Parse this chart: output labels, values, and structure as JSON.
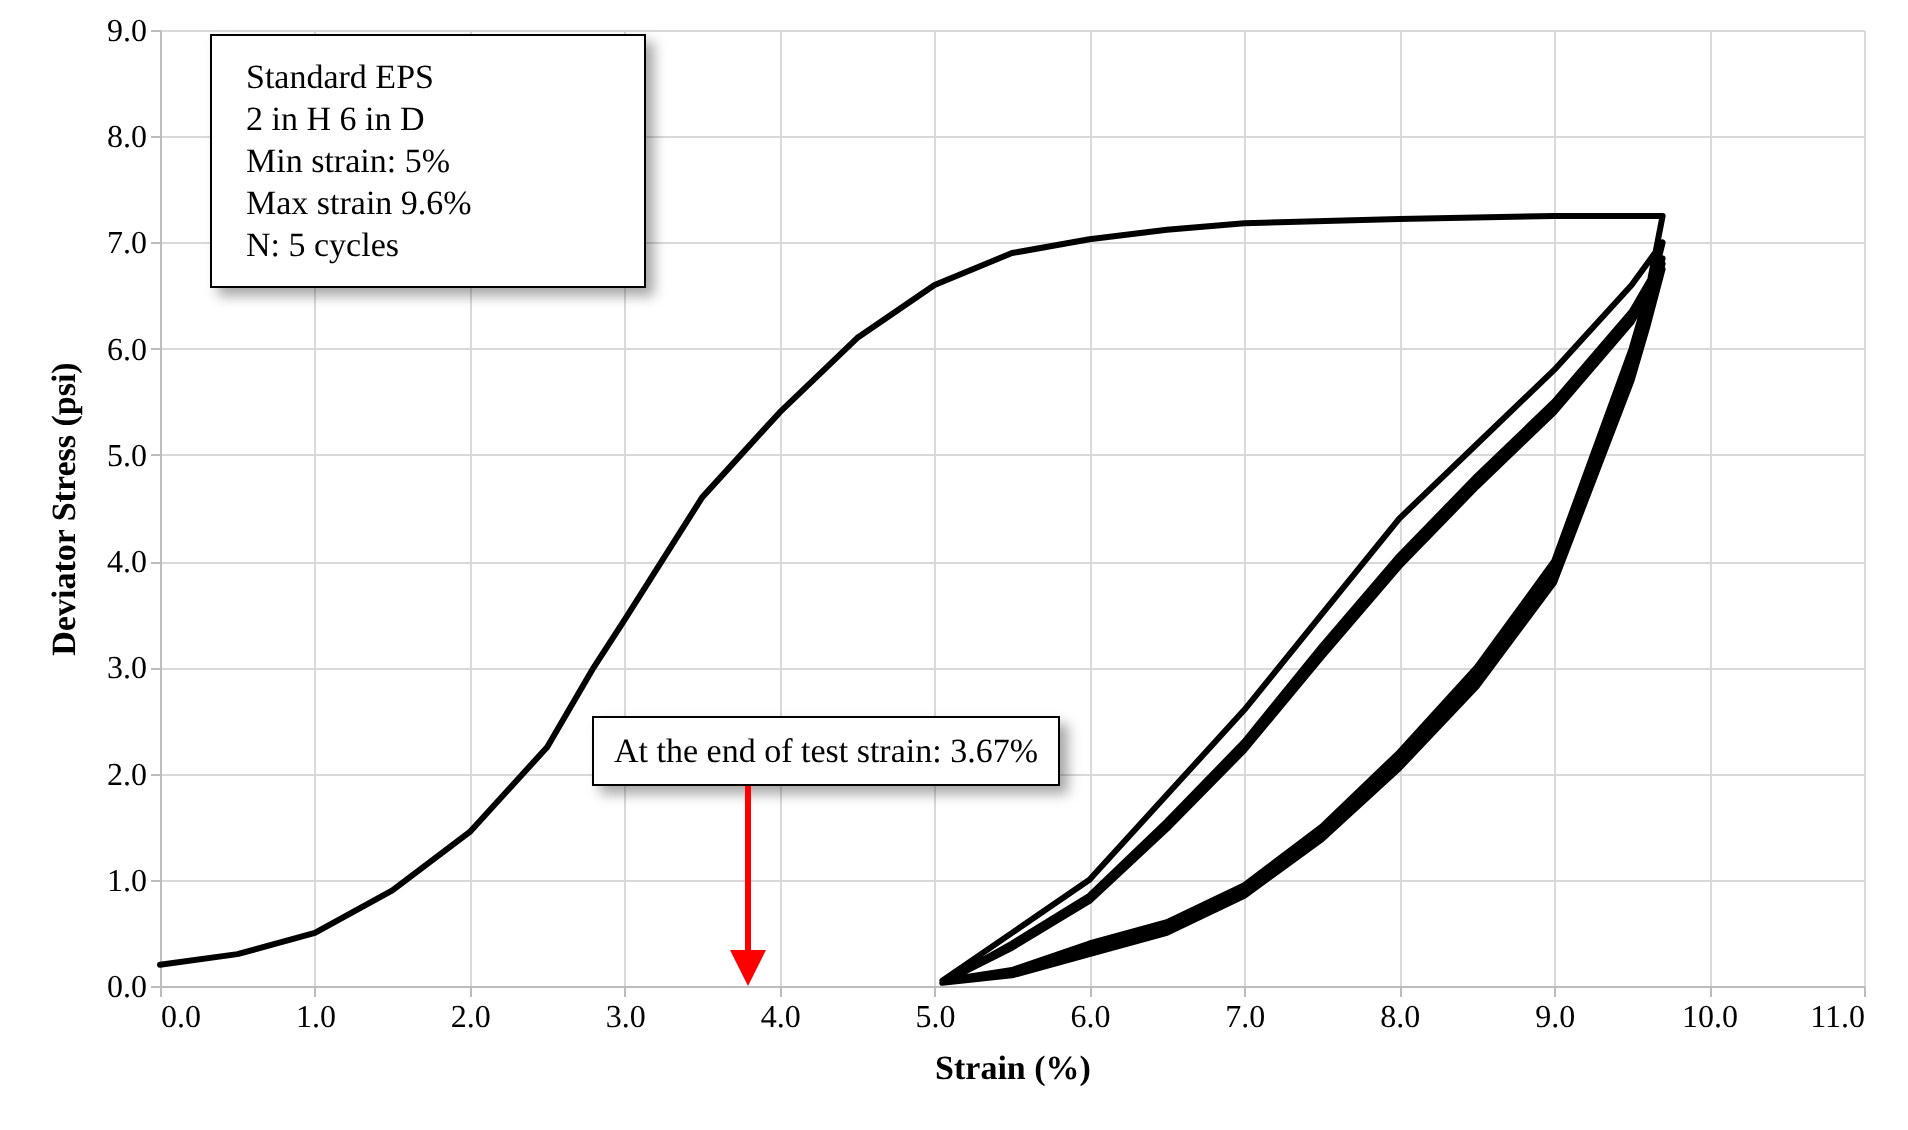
{
  "chart_data": {
    "type": "line",
    "xlabel": "Strain (%)",
    "ylabel": "Deviator Stress (psi)",
    "xlim": [
      0,
      11
    ],
    "xticks": [
      {
        "value": 0,
        "label": "0.0"
      },
      {
        "value": 1,
        "label": "1.0"
      },
      {
        "value": 2,
        "label": "2.0"
      },
      {
        "value": 3,
        "label": "3.0"
      },
      {
        "value": 4,
        "label": "4.0"
      },
      {
        "value": 5,
        "label": "5.0"
      },
      {
        "value": 6,
        "label": "6.0"
      },
      {
        "value": 7,
        "label": "7.0"
      },
      {
        "value": 8,
        "label": "8.0"
      },
      {
        "value": 9,
        "label": "9.0"
      },
      {
        "value": 10,
        "label": "10.0"
      },
      {
        "value": 11,
        "label": "11.0"
      }
    ],
    "ylim": [
      0,
      9
    ],
    "yticks": [
      {
        "value": 0,
        "label": "0.0"
      },
      {
        "value": 1,
        "label": "1.0"
      },
      {
        "value": 2,
        "label": "2.0"
      },
      {
        "value": 3,
        "label": "3.0"
      },
      {
        "value": 4,
        "label": "4.0"
      },
      {
        "value": 5,
        "label": "5.0"
      },
      {
        "value": 6,
        "label": "6.0"
      },
      {
        "value": 7,
        "label": "7.0"
      },
      {
        "value": 8,
        "label": "8.0"
      },
      {
        "value": 9,
        "label": "9.0"
      }
    ],
    "grid": true,
    "marker": "none",
    "line_style": "solid",
    "series": [
      {
        "color": "#000000",
        "x": [
          0,
          0.5,
          1,
          1.5,
          2,
          2.5,
          2.8,
          3,
          3.5,
          4,
          4.5,
          5,
          5.5,
          6,
          6.5,
          7,
          8,
          9,
          9.7,
          9.6,
          9.5,
          9,
          8.5,
          8,
          7.5,
          7,
          6.5,
          6,
          5.5,
          5.05,
          5.5,
          6,
          6.5,
          7,
          7.5,
          8,
          8.5,
          9,
          9.5,
          9.7,
          9.6,
          9.5,
          9,
          8.5,
          8,
          7.5,
          7,
          6.5,
          6,
          5.5,
          5.05,
          5.5,
          6,
          6.5,
          7,
          7.5,
          8,
          8.5,
          9,
          9.5,
          9.7,
          9.6,
          9.5,
          9,
          8.5,
          8,
          7.5,
          7,
          6.5,
          6,
          5.5,
          5.05,
          5.5,
          6,
          6.5,
          7,
          7.5,
          8,
          8.5,
          9,
          9.5,
          9.7,
          9.6,
          9.5,
          9,
          8.5,
          8,
          7.5,
          7,
          6.5,
          6,
          5.5,
          5.05,
          5.5,
          6,
          6.5,
          7,
          7.5,
          8,
          8.5,
          9,
          9.5,
          9.7,
          9.6,
          9.5,
          9,
          8.5,
          8,
          7.5,
          7,
          6.5,
          6,
          5.5,
          5.05
        ],
        "values": [
          0.2,
          0.3,
          0.5,
          0.9,
          1.45,
          2.25,
          3.0,
          3.45,
          4.6,
          5.4,
          6.1,
          6.6,
          6.9,
          7.03,
          7.12,
          7.18,
          7.22,
          7.25,
          7.25,
          6.5,
          6.0,
          4.0,
          3.0,
          2.2,
          1.5,
          0.95,
          0.6,
          0.4,
          0.15,
          0.05,
          0.5,
          1.0,
          1.8,
          2.6,
          3.5,
          4.4,
          5.1,
          5.8,
          6.6,
          7.0,
          6.4,
          5.9,
          3.95,
          2.95,
          2.15,
          1.45,
          0.9,
          0.55,
          0.35,
          0.12,
          0.03,
          0.4,
          0.85,
          1.55,
          2.3,
          3.2,
          4.05,
          4.8,
          5.5,
          6.35,
          6.85,
          6.3,
          5.8,
          3.9,
          2.9,
          2.1,
          1.42,
          0.88,
          0.53,
          0.33,
          0.11,
          0.03,
          0.38,
          0.82,
          1.5,
          2.25,
          3.15,
          4.0,
          4.75,
          5.45,
          6.3,
          6.8,
          6.25,
          5.75,
          3.85,
          2.85,
          2.08,
          1.4,
          0.86,
          0.52,
          0.32,
          0.1,
          0.03,
          0.36,
          0.8,
          1.48,
          2.22,
          3.1,
          3.95,
          4.7,
          5.4,
          6.25,
          6.75,
          6.2,
          5.7,
          3.8,
          2.82,
          2.05,
          1.38,
          0.85,
          0.5,
          0.3,
          0.1,
          0.03
        ]
      }
    ],
    "annotations": [
      "Standard EPS",
      "2 in H 6 in D",
      "Min strain: 5%",
      "Max strain 9.6%",
      "N: 5 cycles",
      "At the end of test strain: 3.67%"
    ]
  }
}
